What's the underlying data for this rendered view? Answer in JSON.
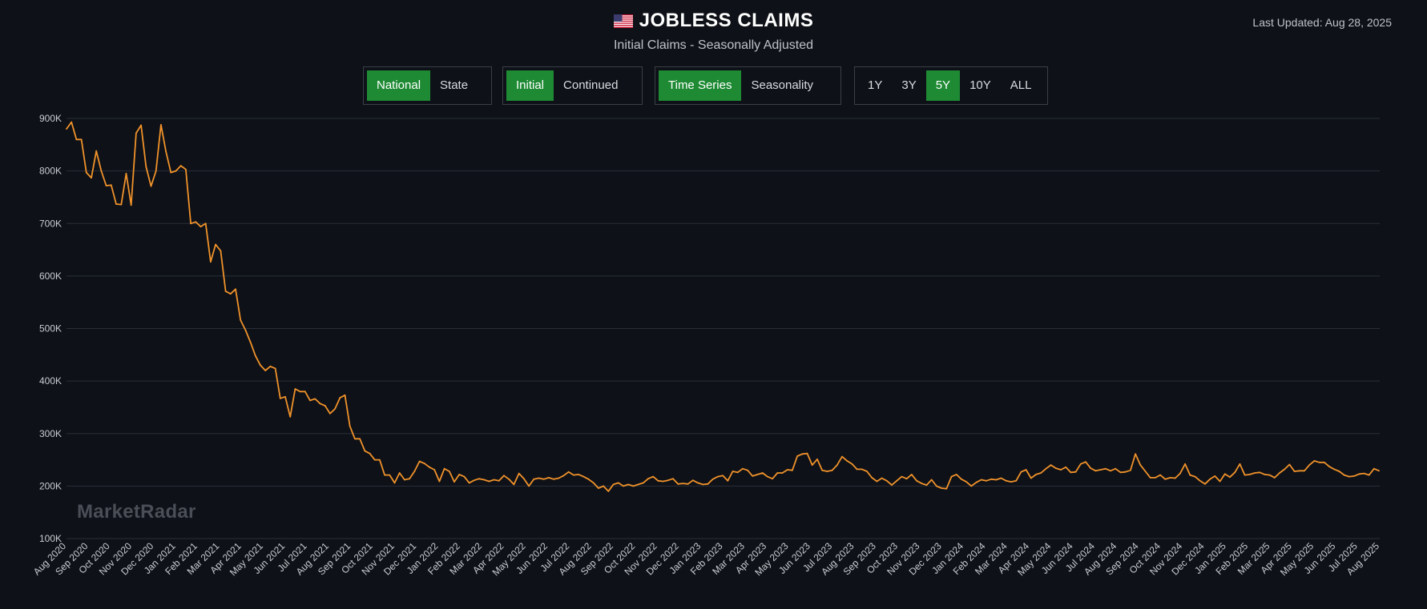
{
  "header": {
    "flag_icon": "us-flag-icon",
    "title": "JOBLESS CLAIMS",
    "subtitle": "Initial Claims - Seasonally Adjusted",
    "last_updated": "Last Updated: Aug 28, 2025"
  },
  "controls": {
    "scope": [
      {
        "label": "National",
        "active": true
      },
      {
        "label": "State",
        "active": false
      }
    ],
    "measure": [
      {
        "label": "Initial",
        "active": true
      },
      {
        "label": "Continued",
        "active": false
      }
    ],
    "view": [
      {
        "label": "Time Series",
        "active": true
      },
      {
        "label": "Seasonality",
        "active": false
      }
    ],
    "range": [
      {
        "label": "1Y",
        "active": false
      },
      {
        "label": "3Y",
        "active": false
      },
      {
        "label": "5Y",
        "active": true
      },
      {
        "label": "10Y",
        "active": false
      },
      {
        "label": "ALL",
        "active": false
      }
    ]
  },
  "watermark": "MarketRadar",
  "colors": {
    "line": "#f0922b",
    "active": "#1e8a34",
    "background": "#0e1117"
  },
  "chart_data": {
    "type": "line",
    "title": "JOBLESS CLAIMS",
    "subtitle": "Initial Claims - Seasonally Adjusted",
    "xlabel": "",
    "ylabel": "",
    "ylim": [
      100000,
      900000
    ],
    "yticks": [
      100000,
      200000,
      300000,
      400000,
      500000,
      600000,
      700000,
      800000,
      900000
    ],
    "ytick_labels": [
      "100K",
      "200K",
      "300K",
      "400K",
      "500K",
      "600K",
      "700K",
      "800K",
      "900K"
    ],
    "xlim": [
      "2020-08-01",
      "2025-08-24"
    ],
    "xtick_labels": [
      "Aug 2020",
      "Sep 2020",
      "Oct 2020",
      "Nov 2020",
      "Dec 2020",
      "Jan 2021",
      "Feb 2021",
      "Mar 2021",
      "Apr 2021",
      "May 2021",
      "Jun 2021",
      "Jul 2021",
      "Aug 2021",
      "Sep 2021",
      "Oct 2021",
      "Nov 2021",
      "Dec 2021",
      "Jan 2022",
      "Feb 2022",
      "Mar 2022",
      "Apr 2022",
      "May 2022",
      "Jun 2022",
      "Jul 2022",
      "Aug 2022",
      "Sep 2022",
      "Oct 2022",
      "Nov 2022",
      "Dec 2022",
      "Jan 2023",
      "Feb 2023",
      "Mar 2023",
      "Apr 2023",
      "May 2023",
      "Jun 2023",
      "Jul 2023",
      "Aug 2023",
      "Sep 2023",
      "Oct 2023",
      "Nov 2023",
      "Dec 2023",
      "Jan 2024",
      "Feb 2024",
      "Mar 2024",
      "Apr 2024",
      "May 2024",
      "Jun 2024",
      "Jul 2024",
      "Aug 2024",
      "Sep 2024",
      "Oct 2024",
      "Nov 2024",
      "Dec 2024",
      "Jan 2025",
      "Feb 2025",
      "Mar 2025",
      "Apr 2025",
      "May 2025",
      "Jun 2025",
      "Jul 2025",
      "Aug 2025"
    ],
    "grid": true,
    "legend": "none",
    "series": [
      {
        "x": [
          "2020-08-01",
          "2020-08-08",
          "2020-08-15",
          "2020-08-22",
          "2020-08-29",
          "2020-09-05",
          "2020-09-12",
          "2020-09-19",
          "2020-09-26",
          "2020-10-03",
          "2020-10-10",
          "2020-10-17",
          "2020-10-24",
          "2020-10-31",
          "2020-11-07",
          "2020-11-14",
          "2020-11-21",
          "2020-11-28",
          "2020-12-05",
          "2020-12-12",
          "2020-12-19",
          "2020-12-26",
          "2021-01-02",
          "2021-01-09",
          "2021-01-16",
          "2021-01-23",
          "2021-01-30",
          "2021-02-06",
          "2021-02-13",
          "2021-02-20",
          "2021-02-27",
          "2021-03-06",
          "2021-03-13",
          "2021-03-20",
          "2021-03-27",
          "2021-04-03",
          "2021-04-10",
          "2021-04-17",
          "2021-04-24",
          "2021-05-01",
          "2021-05-08",
          "2021-05-15",
          "2021-05-22",
          "2021-05-29",
          "2021-06-05",
          "2021-06-12",
          "2021-06-19",
          "2021-06-26",
          "2021-07-03",
          "2021-07-10",
          "2021-07-17",
          "2021-07-24",
          "2021-07-31",
          "2021-08-07",
          "2021-08-14",
          "2021-08-21",
          "2021-08-28",
          "2021-09-04",
          "2021-09-11",
          "2021-09-18",
          "2021-09-25",
          "2021-10-02",
          "2021-10-09",
          "2021-10-16",
          "2021-10-23",
          "2021-10-30",
          "2021-11-06",
          "2021-11-13",
          "2021-11-20",
          "2021-11-27",
          "2021-12-04",
          "2021-12-11",
          "2021-12-18",
          "2021-12-25",
          "2022-01-01",
          "2022-01-08",
          "2022-01-15",
          "2022-01-22",
          "2022-01-29",
          "2022-02-05",
          "2022-02-12",
          "2022-02-19",
          "2022-02-26",
          "2022-03-05",
          "2022-03-12",
          "2022-03-19",
          "2022-03-26",
          "2022-04-02",
          "2022-04-09",
          "2022-04-16",
          "2022-04-23",
          "2022-04-30",
          "2022-05-07",
          "2022-05-14",
          "2022-05-21",
          "2022-05-28",
          "2022-06-04",
          "2022-06-11",
          "2022-06-18",
          "2022-06-25",
          "2022-07-02",
          "2022-07-09",
          "2022-07-16",
          "2022-07-23",
          "2022-07-30",
          "2022-08-06",
          "2022-08-13",
          "2022-08-20",
          "2022-08-27",
          "2022-09-03",
          "2022-09-10",
          "2022-09-17",
          "2022-09-24",
          "2022-10-01",
          "2022-10-08",
          "2022-10-15",
          "2022-10-22",
          "2022-10-29",
          "2022-11-05",
          "2022-11-12",
          "2022-11-19",
          "2022-11-26",
          "2022-12-03",
          "2022-12-10",
          "2022-12-17",
          "2022-12-24",
          "2022-12-31",
          "2023-01-07",
          "2023-01-14",
          "2023-01-21",
          "2023-01-28",
          "2023-02-04",
          "2023-02-11",
          "2023-02-18",
          "2023-02-25",
          "2023-03-04",
          "2023-03-11",
          "2023-03-18",
          "2023-03-25",
          "2023-04-01",
          "2023-04-08",
          "2023-04-15",
          "2023-04-22",
          "2023-04-29",
          "2023-05-06",
          "2023-05-13",
          "2023-05-20",
          "2023-05-27",
          "2023-06-03",
          "2023-06-10",
          "2023-06-17",
          "2023-06-24",
          "2023-07-01",
          "2023-07-08",
          "2023-07-15",
          "2023-07-22",
          "2023-07-29",
          "2023-08-05",
          "2023-08-12",
          "2023-08-19",
          "2023-08-26",
          "2023-09-02",
          "2023-09-09",
          "2023-09-16",
          "2023-09-23",
          "2023-09-30",
          "2023-10-07",
          "2023-10-14",
          "2023-10-21",
          "2023-10-28",
          "2023-11-04",
          "2023-11-11",
          "2023-11-18",
          "2023-11-25",
          "2023-12-02",
          "2023-12-09",
          "2023-12-16",
          "2023-12-23",
          "2023-12-30",
          "2024-01-06",
          "2024-01-13",
          "2024-01-20",
          "2024-01-27",
          "2024-02-03",
          "2024-02-10",
          "2024-02-17",
          "2024-02-24",
          "2024-03-02",
          "2024-03-09",
          "2024-03-16",
          "2024-03-23",
          "2024-03-30",
          "2024-04-06",
          "2024-04-13",
          "2024-04-20",
          "2024-04-27",
          "2024-05-04",
          "2024-05-11",
          "2024-05-18",
          "2024-05-25",
          "2024-06-01",
          "2024-06-08",
          "2024-06-15",
          "2024-06-22",
          "2024-06-29",
          "2024-07-06",
          "2024-07-13",
          "2024-07-20",
          "2024-07-27",
          "2024-08-03",
          "2024-08-10",
          "2024-08-17",
          "2024-08-24",
          "2024-08-31",
          "2024-09-07",
          "2024-09-14",
          "2024-09-21",
          "2024-09-28",
          "2024-10-05",
          "2024-10-12",
          "2024-10-19",
          "2024-10-26",
          "2024-11-02",
          "2024-11-09",
          "2024-11-16",
          "2024-11-23",
          "2024-11-30",
          "2024-12-07",
          "2024-12-14",
          "2024-12-21",
          "2024-12-28",
          "2025-01-04",
          "2025-01-11",
          "2025-01-18",
          "2025-01-25",
          "2025-02-01",
          "2025-02-08",
          "2025-02-15",
          "2025-02-22",
          "2025-03-01",
          "2025-03-08",
          "2025-03-15",
          "2025-03-22",
          "2025-03-29",
          "2025-04-05",
          "2025-04-12",
          "2025-04-19",
          "2025-04-26",
          "2025-05-03",
          "2025-05-10",
          "2025-05-17",
          "2025-05-24",
          "2025-05-31",
          "2025-06-07",
          "2025-06-14",
          "2025-06-21",
          "2025-06-28",
          "2025-07-05",
          "2025-07-12",
          "2025-07-19",
          "2025-07-26",
          "2025-08-02",
          "2025-08-09",
          "2025-08-16",
          "2025-08-23"
        ],
        "y": [
          880000,
          893000,
          860000,
          860000,
          797000,
          787000,
          838000,
          800000,
          772000,
          773000,
          737000,
          736000,
          795000,
          735000,
          872000,
          887000,
          808000,
          771000,
          800000,
          888000,
          837000,
          797000,
          800000,
          810000,
          803000,
          700000,
          703000,
          694000,
          700000,
          627000,
          660000,
          648000,
          571000,
          566000,
          575000,
          516000,
          497000,
          474000,
          448000,
          430000,
          420000,
          428000,
          424000,
          367000,
          370000,
          332000,
          385000,
          380000,
          380000,
          363000,
          366000,
          357000,
          353000,
          338000,
          347000,
          368000,
          373000,
          314000,
          290000,
          290000,
          267000,
          262000,
          250000,
          250000,
          221000,
          221000,
          206000,
          225000,
          212000,
          214000,
          228000,
          247000,
          243000,
          236000,
          231000,
          209000,
          233000,
          228000,
          208000,
          222000,
          218000,
          206000,
          211000,
          214000,
          212000,
          209000,
          212000,
          210000,
          220000,
          213000,
          203000,
          224000,
          214000,
          200000,
          213000,
          215000,
          213000,
          216000,
          213000,
          215000,
          220000,
          227000,
          221000,
          222000,
          218000,
          213000,
          206000,
          196000,
          200000,
          190000,
          203000,
          206000,
          200000,
          203000,
          200000,
          203000,
          206000,
          214000,
          218000,
          210000,
          209000,
          211000,
          214000,
          204000,
          205000,
          204000,
          211000,
          206000,
          203000,
          204000,
          213000,
          218000,
          220000,
          210000,
          228000,
          226000,
          233000,
          230000,
          219000,
          222000,
          225000,
          218000,
          214000,
          225000,
          225000,
          231000,
          230000,
          257000,
          261000,
          262000,
          240000,
          251000,
          230000,
          228000,
          230000,
          240000,
          256000,
          248000,
          242000,
          232000,
          232000,
          228000,
          216000,
          209000,
          215000,
          210000,
          202000,
          210000,
          218000,
          214000,
          222000,
          210000,
          205000,
          202000,
          212000,
          200000,
          196000,
          195000,
          218000,
          222000,
          213000,
          208000,
          200000,
          207000,
          212000,
          210000,
          213000,
          212000,
          215000,
          210000,
          208000,
          210000,
          227000,
          231000,
          215000,
          222000,
          225000,
          233000,
          240000,
          234000,
          231000,
          236000,
          226000,
          227000,
          242000,
          246000,
          234000,
          229000,
          231000,
          233000,
          229000,
          233000,
          226000,
          227000,
          230000,
          261000,
          240000,
          228000,
          216000,
          216000,
          221000,
          213000,
          216000,
          215000,
          224000,
          242000,
          221000,
          218000,
          210000,
          204000,
          213000,
          219000,
          209000,
          223000,
          217000,
          226000,
          242000,
          221000,
          222000,
          225000,
          226000,
          222000,
          221000,
          216000,
          225000,
          232000,
          241000,
          228000,
          229000,
          229000,
          240000,
          248000,
          245000,
          245000,
          237000,
          232000,
          228000,
          221000,
          218000,
          219000,
          223000,
          224000,
          221000,
          233000,
          229000
        ]
      }
    ]
  }
}
